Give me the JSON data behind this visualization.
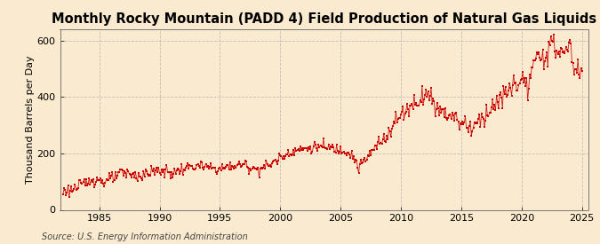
{
  "title": "Monthly Rocky Mountain (PADD 4) Field Production of Natural Gas Liquids",
  "ylabel": "Thousand Barrels per Day",
  "source": "Source: U.S. Energy Information Administration",
  "line_color": "#cc0000",
  "bg_color": "#faebd0",
  "plot_bg_color": "#faebd0",
  "grid_color": "#aaaaaa",
  "xlim": [
    1981.75,
    2025.5
  ],
  "ylim": [
    0,
    640
  ],
  "yticks": [
    0,
    200,
    400,
    600
  ],
  "xticks": [
    1985,
    1990,
    1995,
    2000,
    2005,
    2010,
    2015,
    2020,
    2025
  ],
  "title_fontsize": 10.5,
  "label_fontsize": 8,
  "tick_fontsize": 8,
  "source_fontsize": 7,
  "segments": [
    [
      1982.0,
      65
    ],
    [
      1983.0,
      75
    ],
    [
      1984.5,
      110
    ],
    [
      1985.5,
      100
    ],
    [
      1986.5,
      120
    ],
    [
      1987.0,
      130
    ],
    [
      1988.5,
      120
    ],
    [
      1989.0,
      130
    ],
    [
      1990.0,
      140
    ],
    [
      1991.0,
      130
    ],
    [
      1992.0,
      145
    ],
    [
      1993.0,
      155
    ],
    [
      1994.0,
      150
    ],
    [
      1995.0,
      145
    ],
    [
      1996.0,
      155
    ],
    [
      1997.0,
      160
    ],
    [
      1998.0,
      145
    ],
    [
      1999.0,
      155
    ],
    [
      2000.0,
      185
    ],
    [
      2001.0,
      210
    ],
    [
      2002.0,
      215
    ],
    [
      2003.0,
      225
    ],
    [
      2004.0,
      220
    ],
    [
      2005.5,
      210
    ],
    [
      2006.0,
      195
    ],
    [
      2006.5,
      150
    ],
    [
      2007.5,
      200
    ],
    [
      2008.5,
      250
    ],
    [
      2009.5,
      310
    ],
    [
      2010.5,
      360
    ],
    [
      2011.5,
      390
    ],
    [
      2012.0,
      415
    ],
    [
      2012.5,
      400
    ],
    [
      2013.0,
      360
    ],
    [
      2014.0,
      340
    ],
    [
      2015.0,
      310
    ],
    [
      2015.5,
      300
    ],
    [
      2016.0,
      290
    ],
    [
      2016.5,
      320
    ],
    [
      2017.5,
      360
    ],
    [
      2018.5,
      400
    ],
    [
      2019.5,
      450
    ],
    [
      2020.0,
      460
    ],
    [
      2020.5,
      430
    ],
    [
      2021.0,
      510
    ],
    [
      2021.5,
      540
    ],
    [
      2022.0,
      560
    ],
    [
      2022.5,
      575
    ],
    [
      2023.0,
      570
    ],
    [
      2023.5,
      555
    ],
    [
      2024.0,
      575
    ],
    [
      2024.5,
      490
    ]
  ]
}
